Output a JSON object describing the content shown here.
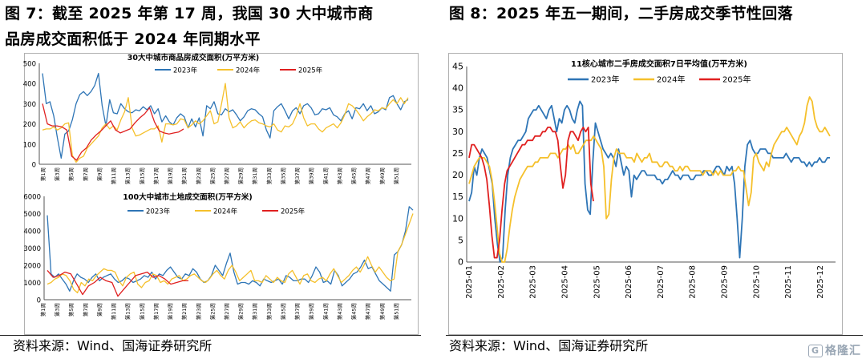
{
  "figures": {
    "left_title_line1": "图 7：截至 2025 年第 17 周，我国 30 大中城市商",
    "left_title_line2": "品房成交面积低于 2024 年同期水平",
    "right_title": "图 8：2025 年五一期间，二手房成交季节性回落",
    "left_source": "资料来源：Wind、国海证券研究所",
    "right_source": "资料来源：Wind、国海证券研究所",
    "watermark": "格隆汇"
  },
  "colors": {
    "y2023": "#2e75b6",
    "y2024": "#f5c02b",
    "y2025": "#e02020"
  },
  "chart_data": [
    {
      "type": "line",
      "title": "30大中城市商品房成交面积(万平方米)",
      "ylim": [
        0,
        500
      ],
      "yticks": [
        0,
        100,
        200,
        300,
        400,
        500
      ],
      "xlabels": [
        "第1周",
        "第3周",
        "第5周",
        "第7周",
        "第9周",
        "第11周",
        "第13周",
        "第15周",
        "第17周",
        "第19周",
        "第21周",
        "第23周",
        "第25周",
        "第27周",
        "第29周",
        "第31周",
        "第33周",
        "第35周",
        "第37周",
        "第39周",
        "第41周",
        "第43周",
        "第45周",
        "第47周",
        "第49周",
        "第51周"
      ],
      "legend": [
        "2023年",
        "2024年",
        "2025年"
      ],
      "series": [
        {
          "name": "2023年",
          "values": [
            450,
            300,
            310,
            240,
            130,
            30,
            150,
            165,
            220,
            300,
            345,
            360,
            340,
            360,
            390,
            450,
            290,
            190,
            320,
            255,
            250,
            300,
            275,
            260,
            255,
            270,
            265,
            285,
            270,
            290,
            250,
            275,
            210,
            240,
            210,
            195,
            230,
            250,
            235,
            180,
            225,
            185,
            230,
            140,
            290,
            275,
            310,
            250,
            245,
            275,
            260,
            270,
            245,
            215,
            235,
            265,
            275,
            270,
            250,
            235,
            170,
            130,
            265,
            285,
            300,
            265,
            225,
            265,
            280,
            250,
            290,
            300,
            280,
            245,
            250,
            275,
            270,
            280,
            245,
            235,
            215,
            250,
            265,
            225,
            280,
            275,
            300,
            265,
            290,
            250,
            260,
            280,
            270,
            330,
            340,
            300,
            270,
            310,
            320
          ]
        },
        {
          "name": "2024年",
          "values": [
            170,
            175,
            175,
            185,
            170,
            180,
            200,
            205,
            45,
            10,
            30,
            40,
            80,
            100,
            120,
            140,
            180,
            200,
            175,
            190,
            170,
            220,
            260,
            330,
            180,
            140,
            145,
            155,
            165,
            175,
            175,
            190,
            110,
            200,
            200,
            195,
            200,
            225,
            220,
            180,
            195,
            215,
            200,
            215,
            240,
            265,
            200,
            210,
            300,
            400,
            230,
            180,
            190,
            210,
            180,
            200,
            215,
            220,
            205,
            200,
            190,
            185,
            200,
            170,
            160,
            190,
            185,
            200,
            240,
            300,
            230,
            190,
            200,
            200,
            175,
            160,
            180,
            190,
            200,
            180,
            205,
            245,
            300,
            290,
            270,
            245,
            215,
            235,
            250,
            270,
            265,
            280,
            275,
            300,
            320,
            300,
            330,
            300,
            330
          ]
        },
        {
          "name": "2025年",
          "values": [
            300,
            200,
            190,
            190,
            185,
            170,
            40,
            20,
            60,
            80,
            120,
            145,
            165,
            190,
            215,
            170,
            155,
            165,
            175,
            205,
            230,
            250,
            280,
            210,
            165,
            155,
            150,
            155,
            160,
            175
          ]
        }
      ]
    },
    {
      "type": "line",
      "title": "100大中城市土地成交面积(万平方米)",
      "ylim": [
        0,
        6000
      ],
      "yticks": [
        0,
        1000,
        2000,
        3000,
        4000,
        5000,
        6000
      ],
      "xlabels": [
        "第1周",
        "第3周",
        "第5周",
        "第7周",
        "第9周",
        "第11周",
        "第13周",
        "第15周",
        "第17周",
        "第19周",
        "第21周",
        "第23周",
        "第25周",
        "第27周",
        "第29周",
        "第31周",
        "第33周",
        "第35周",
        "第37周",
        "第39周",
        "第41周",
        "第43周",
        "第45周",
        "第47周",
        "第49周",
        "第51周"
      ],
      "legend": [
        "2023年",
        "2024年",
        "2025年"
      ],
      "series": [
        {
          "name": "2023年",
          "values": [
            4900,
            1500,
            1300,
            1500,
            1200,
            900,
            500,
            1100,
            1500,
            1300,
            1200,
            1000,
            1300,
            1500,
            1100,
            1300,
            1400,
            1500,
            1200,
            1000,
            1100,
            1300,
            1200,
            1000,
            1100,
            1200,
            1400,
            1300,
            1600,
            1200,
            1500,
            1400,
            1700,
            1900,
            1600,
            1300,
            1200,
            1500,
            1400,
            1800,
            1600,
            1200,
            1000,
            1100,
            1400,
            2000,
            1700,
            1400,
            2100,
            2700,
            1600,
            900,
            1000,
            1000,
            900,
            1100,
            1000,
            800,
            1200,
            1100,
            1000,
            1100,
            1200,
            900,
            1400,
            1300,
            1100,
            1100,
            1200,
            1200,
            1000,
            1400,
            1900,
            1600,
            1000,
            1100,
            900,
            1700,
            1400,
            800,
            1000,
            1200,
            1500,
            1600,
            1900,
            2300,
            1800,
            1900,
            1500,
            1100,
            900,
            700,
            500,
            2600,
            2800,
            3200,
            4000,
            5400,
            5200
          ]
        },
        {
          "name": "2024年",
          "values": [
            900,
            1000,
            1200,
            1300,
            1500,
            1400,
            1100,
            600,
            400,
            1000,
            800,
            1200,
            1100,
            1400,
            1600,
            1800,
            1700,
            1700,
            1600,
            1100,
            800,
            1300,
            1500,
            1600,
            900,
            700,
            1000,
            1100,
            1500,
            1400,
            1000,
            1100,
            900,
            1200,
            1300,
            1400,
            1100,
            1200,
            1400,
            1500,
            1300,
            1100,
            1000,
            1200,
            1500,
            1700,
            1400,
            1200,
            1700,
            2000,
            1600,
            1100,
            1300,
            1500,
            1700,
            1100,
            1100,
            1000,
            1400,
            1200,
            1000,
            1300,
            1100,
            1000,
            1500,
            1700,
            1300,
            900,
            1400,
            1500,
            1100,
            1000,
            1200,
            1300,
            1100,
            1500,
            1800,
            1400,
            1000,
            1200,
            1400,
            1700,
            1900,
            1600,
            2000,
            2500,
            2000,
            1600,
            1900,
            1600,
            1300,
            1100,
            1200,
            2800,
            3200,
            3800,
            4400,
            5000
          ]
        },
        {
          "name": "2025年",
          "values": [
            1700,
            1300,
            1400,
            1600,
            1500,
            900,
            300,
            800,
            1000,
            1300,
            1100,
            1000,
            200,
            600,
            1000,
            1400,
            1500,
            1600,
            1300,
            1400,
            1200,
            900,
            1000,
            1100,
            1100
          ]
        }
      ]
    },
    {
      "type": "line",
      "title": "11核心城市二手房成交面积7日平均值(万平方米)",
      "ylim": [
        0,
        45
      ],
      "yticks": [
        0,
        5,
        10,
        15,
        20,
        25,
        30,
        35,
        40,
        45
      ],
      "xlabels": [
        "2025-01",
        "2025-02",
        "2025-03",
        "2025-04",
        "2025-05",
        "2025-06",
        "2025-07",
        "2025-08",
        "2025-09",
        "2025-10",
        "2025-11",
        "2025-12"
      ],
      "legend": [
        "2023年",
        "2024年",
        "2025年"
      ],
      "series": [
        {
          "name": "2023年",
          "values": [
            14,
            16,
            22,
            20,
            24,
            26,
            25,
            24,
            21,
            18,
            10,
            4,
            0,
            1,
            12,
            20,
            24,
            26,
            27,
            28,
            28,
            29,
            30,
            33,
            34,
            35,
            35,
            36,
            35,
            34,
            33,
            35,
            36,
            33,
            30,
            33,
            32,
            35,
            36,
            35,
            33,
            32,
            35,
            37,
            36,
            18,
            12,
            11,
            23,
            32,
            30,
            28,
            26,
            25,
            24,
            25,
            24,
            22,
            26,
            23,
            20,
            22,
            21,
            15,
            20,
            19,
            20,
            21,
            21,
            20,
            20,
            20,
            20,
            19,
            19,
            18,
            19,
            19,
            20,
            21,
            20,
            20,
            19,
            20,
            20,
            20,
            19,
            19,
            20,
            20,
            20,
            21,
            21,
            20,
            20,
            21,
            22,
            22,
            21,
            20,
            22,
            21,
            22,
            18,
            10,
            1,
            10,
            22,
            27,
            28,
            26,
            25,
            25,
            26,
            26,
            26,
            25,
            25,
            24,
            24,
            24,
            24,
            24,
            25,
            24,
            23,
            24,
            24,
            24,
            23,
            23,
            22,
            23,
            22,
            23,
            23,
            24,
            23,
            23,
            24,
            24
          ]
        },
        {
          "name": "2024年",
          "values": [
            18,
            20,
            22,
            23,
            24,
            24,
            24,
            23,
            22,
            19,
            14,
            8,
            2,
            0,
            0,
            3,
            8,
            12,
            15,
            17,
            19,
            20,
            21,
            22,
            22,
            22,
            23,
            23,
            24,
            24,
            24,
            24,
            25,
            25,
            25,
            24,
            25,
            26,
            26,
            27,
            26,
            27,
            25,
            25,
            26,
            27,
            28,
            28,
            28,
            29,
            28,
            27,
            26,
            22,
            10,
            11,
            19,
            24,
            26,
            25,
            25,
            25,
            24,
            24,
            24,
            23,
            25,
            24,
            23,
            24,
            24,
            25,
            23,
            23,
            23,
            22,
            22,
            23,
            23,
            22,
            22,
            21,
            21,
            22,
            21,
            22,
            22,
            21,
            21,
            21,
            21,
            21,
            20,
            21,
            21,
            21,
            20,
            21,
            20,
            21,
            20,
            20,
            20,
            20,
            21,
            21,
            22,
            21,
            21,
            17,
            13,
            16,
            24,
            25,
            23,
            22,
            21,
            23,
            22,
            25,
            27,
            28,
            29,
            30,
            30,
            31,
            30,
            29,
            28,
            27,
            29,
            30,
            32,
            36,
            38,
            37,
            33,
            31,
            30,
            30,
            31,
            30,
            29
          ]
        },
        {
          "name": "2025年",
          "values": [
            24,
            27,
            27,
            26,
            25,
            24,
            22,
            19,
            13,
            6,
            1,
            1,
            5,
            12,
            18,
            21,
            22,
            23,
            24,
            25,
            26,
            27,
            27,
            28,
            28,
            28,
            29,
            29,
            29,
            30,
            30,
            31,
            31,
            30,
            30,
            28,
            22,
            17,
            20,
            28,
            30,
            30,
            29,
            28,
            30,
            31,
            30,
            31,
            18,
            14
          ]
        }
      ]
    }
  ]
}
